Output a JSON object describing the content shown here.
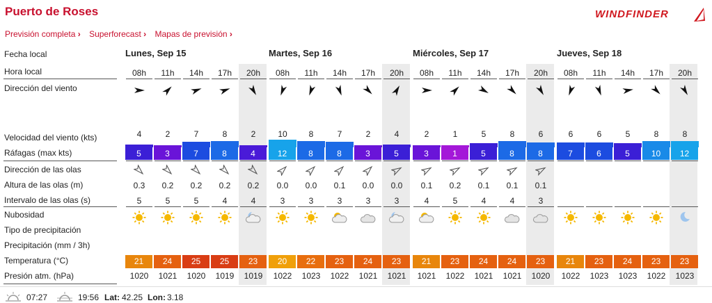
{
  "header": {
    "title": "Puerto de Roses",
    "brand": "WINDFINDER",
    "nav": [
      "Previsión completa",
      "Superforecast",
      "Mapas de previsión"
    ]
  },
  "row_labels": {
    "fecha": "Fecha local",
    "hora": "Hora local",
    "direccion": "Dirección del viento",
    "velocidad": "Velocidad del viento (kts)",
    "rafagas": "Ráfagas (max kts)",
    "olas_dir": "Dirección de las olas",
    "olas_alt": "Altura de las olas (m)",
    "olas_int": "Intervalo de las olas (s)",
    "nubosidad": "Nubosidad",
    "precip_tipo": "Tipo de precipitación",
    "precip": "Precipitación (mm / 3h)",
    "temp": "Temperatura (°C)",
    "presion": "Presión atm. (hPa)"
  },
  "days": [
    "Lunes, Sep 15",
    "Martes, Sep 16",
    "Miércoles, Sep 17",
    "Jueves, Sep 18"
  ],
  "columns": [
    {
      "hour": "08h",
      "wind_dir": 90,
      "speed": "4",
      "gust": "5",
      "gust_color": "#3b1fd6",
      "wave_dir": 135,
      "wave_h": "0.3",
      "wave_p": "5",
      "sky": "sun",
      "temp": "21",
      "temp_color": "#e8860c",
      "press": "1020"
    },
    {
      "hour": "11h",
      "wind_dir": 45,
      "speed": "2",
      "gust": "3",
      "gust_color": "#6a14d8",
      "wave_dir": 135,
      "wave_h": "0.2",
      "wave_p": "5",
      "sky": "sun",
      "temp": "24",
      "temp_color": "#e56110",
      "press": "1021"
    },
    {
      "hour": "14h",
      "wind_dir": 70,
      "speed": "7",
      "gust": "7",
      "gust_color": "#1c4ce0",
      "wave_dir": 135,
      "wave_h": "0.2",
      "wave_p": "5",
      "sky": "sun",
      "temp": "25",
      "temp_color": "#d93d14",
      "press": "1020"
    },
    {
      "hour": "17h",
      "wind_dir": 70,
      "speed": "8",
      "gust": "8",
      "gust_color": "#1c6ae6",
      "wave_dir": 135,
      "wave_h": "0.2",
      "wave_p": "4",
      "sky": "sun",
      "temp": "25",
      "temp_color": "#d93d14",
      "press": "1019"
    },
    {
      "hour": "20h",
      "wind_dir": 150,
      "speed": "2",
      "gust": "4",
      "gust_color": "#4a1ad8",
      "wave_dir": 135,
      "wave_h": "0.2",
      "wave_p": "4",
      "sky": "moon-cloud",
      "temp": "23",
      "temp_color": "#e56110",
      "press": "1019"
    },
    {
      "hour": "08h",
      "wind_dir": 200,
      "speed": "10",
      "gust": "12",
      "gust_color": "#17a3ea",
      "wave_dir": 45,
      "wave_h": "0.0",
      "wave_p": "3",
      "sky": "sun",
      "temp": "20",
      "temp_color": "#f0a00a",
      "press": "1022"
    },
    {
      "hour": "11h",
      "wind_dir": 200,
      "speed": "8",
      "gust": "8",
      "gust_color": "#1c6ae6",
      "wave_dir": 45,
      "wave_h": "0.0",
      "wave_p": "3",
      "sky": "sun",
      "temp": "22",
      "temp_color": "#e86e0e",
      "press": "1023"
    },
    {
      "hour": "14h",
      "wind_dir": 160,
      "speed": "7",
      "gust": "8",
      "gust_color": "#1c6ae6",
      "wave_dir": 45,
      "wave_h": "0.1",
      "wave_p": "3",
      "sky": "sun-cloud",
      "temp": "23",
      "temp_color": "#e56110",
      "press": "1022"
    },
    {
      "hour": "17h",
      "wind_dir": 135,
      "speed": "2",
      "gust": "3",
      "gust_color": "#6a14d8",
      "wave_dir": 45,
      "wave_h": "0.0",
      "wave_p": "3",
      "sky": "cloud",
      "temp": "24",
      "temp_color": "#e56110",
      "press": "1021"
    },
    {
      "hour": "20h",
      "wind_dir": 30,
      "speed": "4",
      "gust": "5",
      "gust_color": "#3b1fd6",
      "wave_dir": 60,
      "wave_h": "0.0",
      "wave_p": "3",
      "sky": "moon-cloud",
      "temp": "23",
      "temp_color": "#e56110",
      "press": "1021"
    },
    {
      "hour": "08h",
      "wind_dir": 90,
      "speed": "2",
      "gust": "3",
      "gust_color": "#6a14d8",
      "wave_dir": 60,
      "wave_h": "0.1",
      "wave_p": "4",
      "sky": "sun-cloud",
      "temp": "21",
      "temp_color": "#e8860c",
      "press": "1021"
    },
    {
      "hour": "11h",
      "wind_dir": 45,
      "speed": "1",
      "gust": "1",
      "gust_color": "#a418d8",
      "wave_dir": 60,
      "wave_h": "0.2",
      "wave_p": "5",
      "sky": "sun",
      "temp": "23",
      "temp_color": "#e56110",
      "press": "1022"
    },
    {
      "hour": "14h",
      "wind_dir": 120,
      "speed": "5",
      "gust": "5",
      "gust_color": "#3b1fd6",
      "wave_dir": 60,
      "wave_h": "0.1",
      "wave_p": "4",
      "sky": "sun",
      "temp": "24",
      "temp_color": "#e56110",
      "press": "1021"
    },
    {
      "hour": "17h",
      "wind_dir": 135,
      "speed": "8",
      "gust": "8",
      "gust_color": "#1c6ae6",
      "wave_dir": 60,
      "wave_h": "0.1",
      "wave_p": "4",
      "sky": "cloud",
      "temp": "24",
      "temp_color": "#e56110",
      "press": "1021"
    },
    {
      "hour": "20h",
      "wind_dir": 150,
      "speed": "6",
      "gust": "8",
      "gust_color": "#1c6ae6",
      "wave_dir": 60,
      "wave_h": "0.1",
      "wave_p": "3",
      "sky": "cloud",
      "temp": "23",
      "temp_color": "#e56110",
      "press": "1020"
    },
    {
      "hour": "08h",
      "wind_dir": 200,
      "speed": "6",
      "gust": "7",
      "gust_color": "#1c4ce0",
      "wave_dir": null,
      "wave_h": "",
      "wave_p": "",
      "sky": "sun",
      "temp": "21",
      "temp_color": "#e8860c",
      "press": "1022"
    },
    {
      "hour": "11h",
      "wind_dir": 160,
      "speed": "6",
      "gust": "6",
      "gust_color": "#1c4ce0",
      "wave_dir": null,
      "wave_h": "",
      "wave_p": "",
      "sky": "sun",
      "temp": "23",
      "temp_color": "#e56110",
      "press": "1023"
    },
    {
      "hour": "14h",
      "wind_dir": 80,
      "speed": "5",
      "gust": "5",
      "gust_color": "#3b1fd6",
      "wave_dir": null,
      "wave_h": "",
      "wave_p": "",
      "sky": "sun",
      "temp": "24",
      "temp_color": "#e56110",
      "press": "1023"
    },
    {
      "hour": "17h",
      "wind_dir": 135,
      "speed": "8",
      "gust": "10",
      "gust_color": "#198ae8",
      "wave_dir": null,
      "wave_h": "",
      "wave_p": "",
      "sky": "sun",
      "temp": "23",
      "temp_color": "#e56110",
      "press": "1022"
    },
    {
      "hour": "20h",
      "wind_dir": 150,
      "speed": "8",
      "gust": "12",
      "gust_color": "#17a3ea",
      "wave_dir": null,
      "wave_h": "",
      "wave_p": "",
      "sky": "moon",
      "temp": "23",
      "temp_color": "#e56110",
      "press": "1023"
    }
  ],
  "footer": {
    "sunrise": "07:27",
    "sunset": "19:56",
    "lat_label": "Lat:",
    "lat": "42.25",
    "lon_label": "Lon:",
    "lon": "3.18"
  }
}
